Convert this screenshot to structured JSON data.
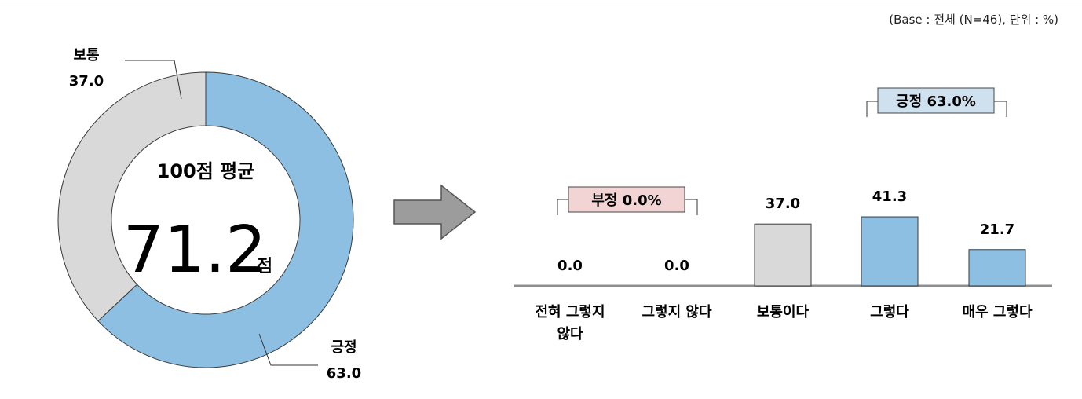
{
  "base_note": "(Base : 전체 (N=46), 단위 : %)",
  "donut": {
    "center_title": "100점 평균",
    "center_value": "71.2",
    "center_unit": "점",
    "segments": [
      {
        "name": "긍정",
        "value": 63.0,
        "value_label": "63.0",
        "color": "#8dbfe3"
      },
      {
        "name": "보통",
        "value": 37.0,
        "value_label": "37.0",
        "color": "#d9d9d9"
      }
    ]
  },
  "chart_data": {
    "type": "bar",
    "categories": [
      "전혀 그렇지 않다",
      "그렇지 않다",
      "보통이다",
      "그렇다",
      "매우 그렇다"
    ],
    "category_lines": [
      [
        "전혀 그렇지",
        "않다"
      ],
      [
        "그렇지 않다"
      ],
      [
        "보통이다"
      ],
      [
        "그렇다"
      ],
      [
        "매우 그렇다"
      ]
    ],
    "values": [
      0.0,
      0.0,
      37.0,
      41.3,
      21.7
    ],
    "value_labels": [
      "0.0",
      "0.0",
      "37.0",
      "41.3",
      "21.7"
    ],
    "bar_colors": [
      "#8dbfe3",
      "#8dbfe3",
      "#d9d9d9",
      "#8dbfe3",
      "#8dbfe3"
    ],
    "group_labels": [
      {
        "text": "부정 0.0%",
        "from": 0,
        "to": 1,
        "color": "#f3d4d4"
      },
      {
        "text": "긍정 63.0%",
        "from": 3,
        "to": 4,
        "color": "#cfe0ef"
      }
    ],
    "ylim": [
      0,
      50
    ]
  },
  "arrow_icon": "right-arrow-icon"
}
